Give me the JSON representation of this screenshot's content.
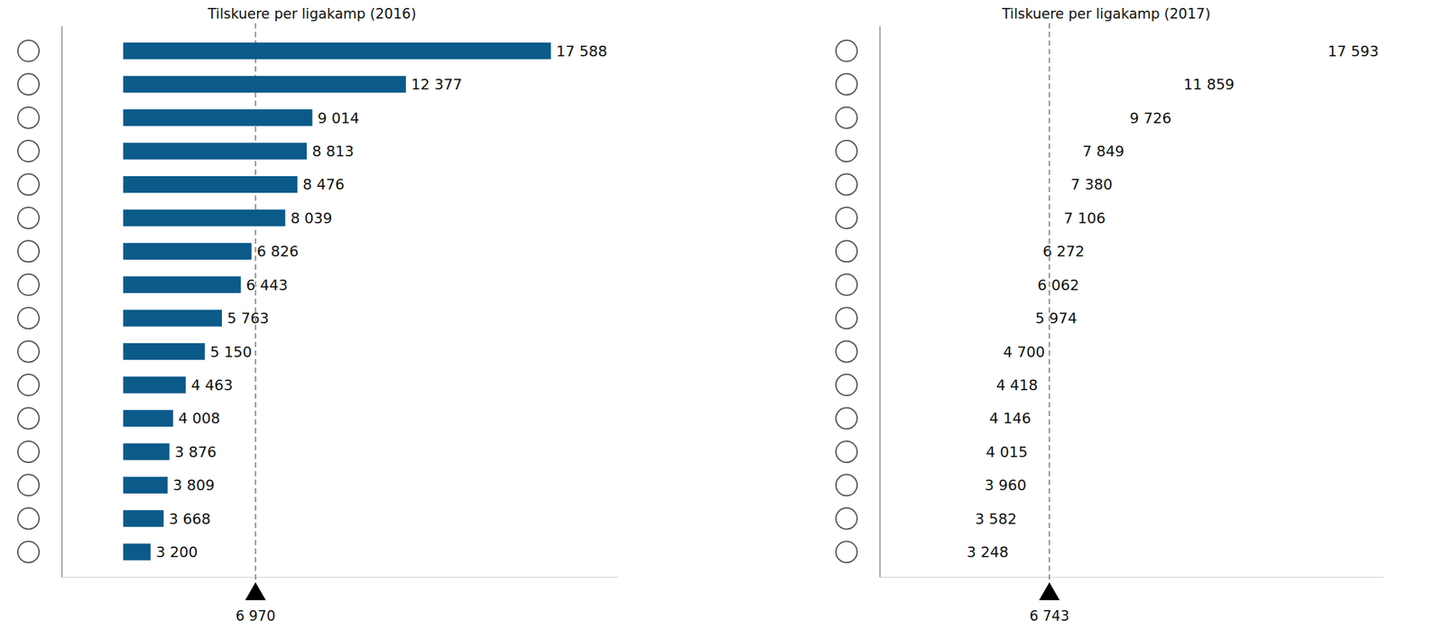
{
  "chart_data": [
    {
      "type": "bar",
      "title": "Tilskuere per ligakamp (2016)",
      "orientation": "horizontal",
      "data_labels": true,
      "tick_labels": false,
      "color": "#0b5a8a",
      "categories": [
        null,
        null,
        null,
        null,
        null,
        null,
        null,
        null,
        null,
        null,
        null,
        null,
        null,
        null,
        null,
        null
      ],
      "values": [
        17588,
        12377,
        9014,
        8813,
        8476,
        8039,
        6826,
        6443,
        5763,
        5150,
        4463,
        4008,
        3876,
        3809,
        3668,
        3200
      ],
      "value_labels": [
        "17 588",
        "12 377",
        "9 014",
        "8 813",
        "8 476",
        "8 039",
        "6 826",
        "6 443",
        "5 763",
        "5 150",
        "4 463",
        "4 008",
        "3 876",
        "3 809",
        "3 668",
        "3 200"
      ],
      "xlim": [
        0,
        20000
      ],
      "xticks": [],
      "mean": {
        "value": 6970,
        "label": "6 970"
      }
    },
    {
      "type": "bar",
      "title": "Tilskuere per ligakamp (2017)",
      "orientation": "horizontal",
      "data_labels": true,
      "tick_labels": false,
      "color": "#0b5a8a",
      "categories": [
        null,
        null,
        null,
        null,
        null,
        null,
        null,
        null,
        null,
        null,
        null,
        null,
        null,
        null,
        null,
        null
      ],
      "values": [
        17593,
        11859,
        9726,
        7849,
        7380,
        7106,
        6272,
        6062,
        5974,
        4700,
        4418,
        4146,
        4015,
        3960,
        3582,
        3248
      ],
      "value_labels": [
        "17 593",
        "11 859",
        "9 726",
        "7 849",
        "7 380",
        "7 106",
        "6 272",
        "6 062",
        "5 974",
        "4 700",
        "4 418",
        "4 146",
        "4 015",
        "3 960",
        "3 582",
        "3 248"
      ],
      "xlim": [
        0,
        20000
      ],
      "xticks": [],
      "mean": {
        "value": 6743,
        "label": "6 743"
      }
    }
  ]
}
